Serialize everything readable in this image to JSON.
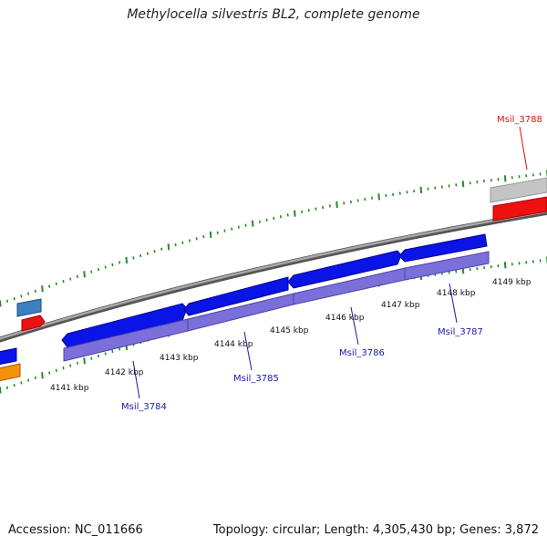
{
  "title": "Methylocella silvestris BL2, complete genome",
  "footer": {
    "accession": "Accession: NC_011666",
    "summary": "Topology: circular; Length: 4,305,430 bp; Genes: 3,872"
  },
  "colors": {
    "backbone": "#888888",
    "cds_forward": "#0a14e6",
    "cds_reverse_lavender": "#7a6fd8",
    "gene_label": "#1a1aaa",
    "highlight_label": "#dd1111",
    "tick_green": "#2a8a2a"
  },
  "scale_labels": [
    "4141 kbp",
    "4142 kbp",
    "4143 kbp",
    "4144 kbp",
    "4145 kbp",
    "4146 kbp",
    "4147 kbp",
    "4148 kbp",
    "4149 kbp"
  ],
  "gene_labels": [
    {
      "id": "g3784",
      "text": "Msil_3784",
      "kind": "normal"
    },
    {
      "id": "g3785",
      "text": "Msil_3785",
      "kind": "normal"
    },
    {
      "id": "g3786",
      "text": "Msil_3786",
      "kind": "normal"
    },
    {
      "id": "g3787",
      "text": "Msil_3787",
      "kind": "normal"
    },
    {
      "id": "g3788",
      "text": "Msil_3788",
      "kind": "highlight"
    }
  ]
}
